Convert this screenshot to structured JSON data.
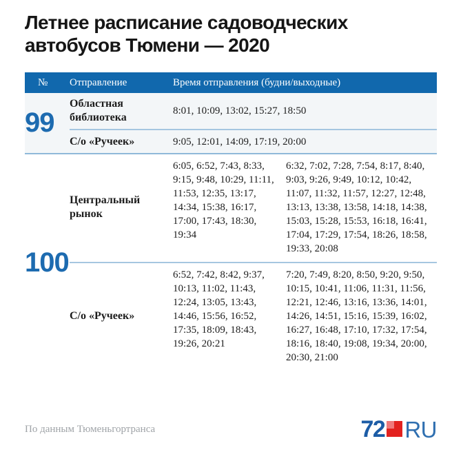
{
  "title": {
    "line1": "Летнее расписание садоводческих",
    "line2": "автобусов Тюмени — 2020"
  },
  "chart_data": {
    "type": "table",
    "title": "Летнее расписание садоводческих автобусов Тюмени — 2020",
    "header": {
      "number": "№",
      "departure": "Отправление",
      "times": "Время отправления (будни/выходные)"
    },
    "routes": [
      {
        "number": "99",
        "rows": [
          {
            "stop": "Областная библиотека",
            "times": [
              "8:01",
              "10:09",
              "13:02",
              "15:27",
              "18:50"
            ]
          },
          {
            "stop": "С/о «Ручеек»",
            "times": [
              "9:05",
              "12:01",
              "14:09",
              "17:19",
              "20:00"
            ]
          }
        ]
      },
      {
        "number": "100",
        "rows": [
          {
            "stop": "Центральный рынок",
            "weekday": [
              "6:05",
              "6:52",
              "7:43",
              "8:33",
              "9:15",
              "9:48",
              "10:29",
              "11:11",
              "11:53",
              "12:35",
              "13:17",
              "14:34",
              "15:38",
              "16:17",
              "17:00",
              "17:43",
              "18:30",
              "19:34"
            ],
            "weekend": [
              "6:32",
              "7:02",
              "7:28",
              "7:54",
              "8:17",
              "8:40",
              "9:03",
              "9:26",
              "9:49",
              "10:12",
              "10:42",
              "11:07",
              "11:32",
              "11:57",
              "12:27",
              "12:48",
              "13:13",
              "13:38",
              "13:58",
              "14:18",
              "14:38",
              "15:03",
              "15:28",
              "15:53",
              "16:18",
              "16:41",
              "17:04",
              "17:29",
              "17:54",
              "18:26",
              "18:58",
              "19:33",
              "20:08"
            ]
          },
          {
            "stop": "С/о «Ручеек»",
            "weekday": [
              "6:52",
              "7:42",
              "8:42",
              "9:37",
              "10:13",
              "11:02",
              "11:43",
              "12:24",
              "13:05",
              "13:43",
              "14:46",
              "15:56",
              "16:52",
              "17:35",
              "18:09",
              "18:43",
              "19:26",
              "20:21"
            ],
            "weekend": [
              "7:20",
              "7:49",
              "8:20",
              "8:50",
              "9:20",
              "9:50",
              "10:15",
              "10:41",
              "11:06",
              "11:31",
              "11:56",
              "12:21",
              "12:46",
              "13:16",
              "13:36",
              "14:01",
              "14:26",
              "14:51",
              "15:16",
              "15:39",
              "16:02",
              "16:27",
              "16:48",
              "17:10",
              "17:32",
              "17:54",
              "18:16",
              "18:40",
              "19:08",
              "19:34",
              "20:00",
              "20:30",
              "21:00"
            ]
          }
        ]
      }
    ]
  },
  "footer": {
    "source": "По данным Тюменьгортранса",
    "logo_prefix": "72",
    "logo_suffix": "RU"
  },
  "colors": {
    "header-bg": "#1168ad",
    "accent-blue": "#1d6bb0",
    "section-tint": "#f3f6f8",
    "divider": "#8fb9d9",
    "divider-light": "#a5c6e0",
    "text": "#1c1c1c",
    "muted": "#9fa3a7",
    "logo-blue": "#1c5ca6",
    "logo-blue-light": "#2f6fb0",
    "logo-red": "#e3221f",
    "logo-red-light": "#ef7a7c"
  }
}
